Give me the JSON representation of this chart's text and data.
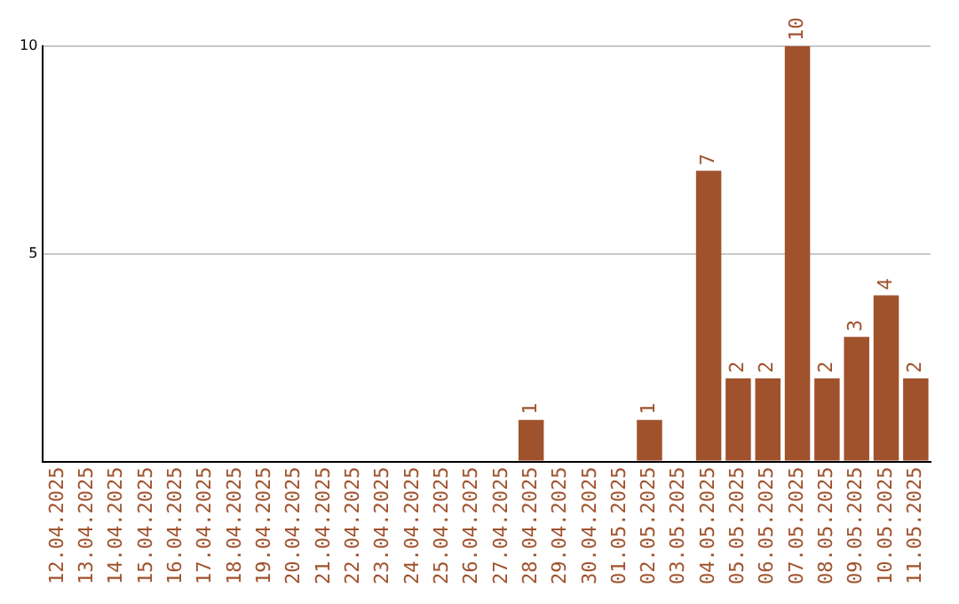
{
  "chart_data": {
    "type": "bar",
    "categories": [
      "12.04.2025",
      "13.04.2025",
      "14.04.2025",
      "15.04.2025",
      "16.04.2025",
      "17.04.2025",
      "18.04.2025",
      "19.04.2025",
      "20.04.2025",
      "21.04.2025",
      "22.04.2025",
      "23.04.2025",
      "24.04.2025",
      "25.04.2025",
      "26.04.2025",
      "27.04.2025",
      "28.04.2025",
      "29.04.2025",
      "30.04.2025",
      "01.05.2025",
      "02.05.2025",
      "03.05.2025",
      "04.05.2025",
      "05.05.2025",
      "06.05.2025",
      "07.05.2025",
      "08.05.2025",
      "09.05.2025",
      "10.05.2025",
      "11.05.2025"
    ],
    "values": [
      0,
      0,
      0,
      0,
      0,
      0,
      0,
      0,
      0,
      0,
      0,
      0,
      0,
      0,
      0,
      0,
      1,
      0,
      0,
      0,
      1,
      0,
      7,
      2,
      2,
      10,
      2,
      3,
      4,
      2
    ],
    "value_labels": [
      null,
      null,
      null,
      null,
      null,
      null,
      null,
      null,
      null,
      null,
      null,
      null,
      null,
      null,
      null,
      null,
      "1",
      null,
      null,
      null,
      "1",
      null,
      "7",
      "2",
      "2",
      "10",
      "2",
      "3",
      "4",
      "2"
    ],
    "color": "#a0522d",
    "ylim": [
      0,
      10
    ],
    "yticks": [
      {
        "value": 0,
        "label": null
      },
      5,
      10
    ],
    "grid": "y"
  }
}
